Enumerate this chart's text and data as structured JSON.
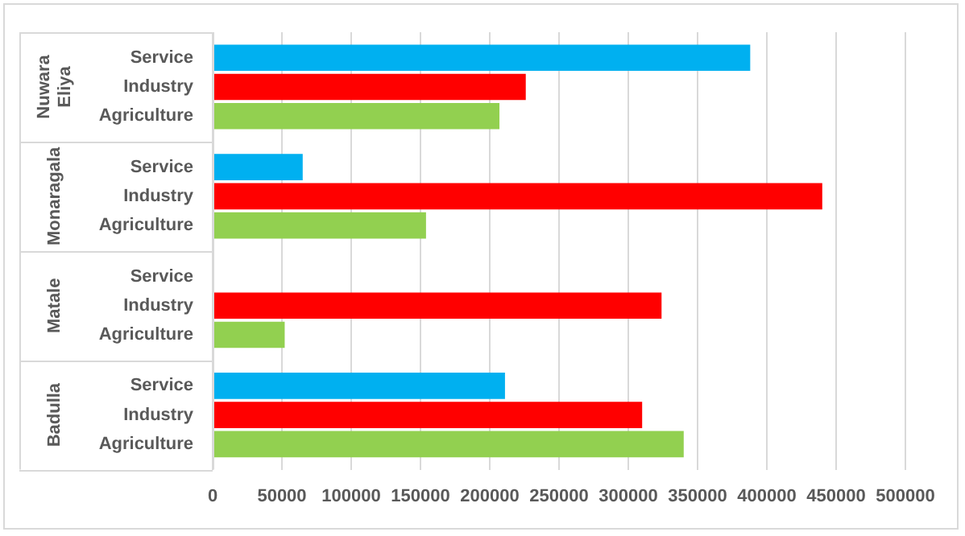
{
  "chart_data": {
    "type": "bar",
    "orientation": "horizontal",
    "categories": [
      "Nuwara Eliya",
      "Monaragala",
      "Matale",
      "Badulla"
    ],
    "series": [
      {
        "name": "Service",
        "color": "#00b0f0",
        "values": [
          388000,
          65000,
          null,
          211000
        ]
      },
      {
        "name": "Industry",
        "color": "#ff0000",
        "values": [
          226000,
          440000,
          324000,
          310000
        ]
      },
      {
        "name": "Agriculture",
        "color": "#92d050",
        "values": [
          207000,
          154000,
          52000,
          340000
        ]
      }
    ],
    "xlim": [
      0,
      500000
    ],
    "xticks": [
      0,
      50000,
      100000,
      150000,
      200000,
      250000,
      300000,
      350000,
      400000,
      450000,
      500000
    ],
    "grid": "x",
    "legend": false
  }
}
